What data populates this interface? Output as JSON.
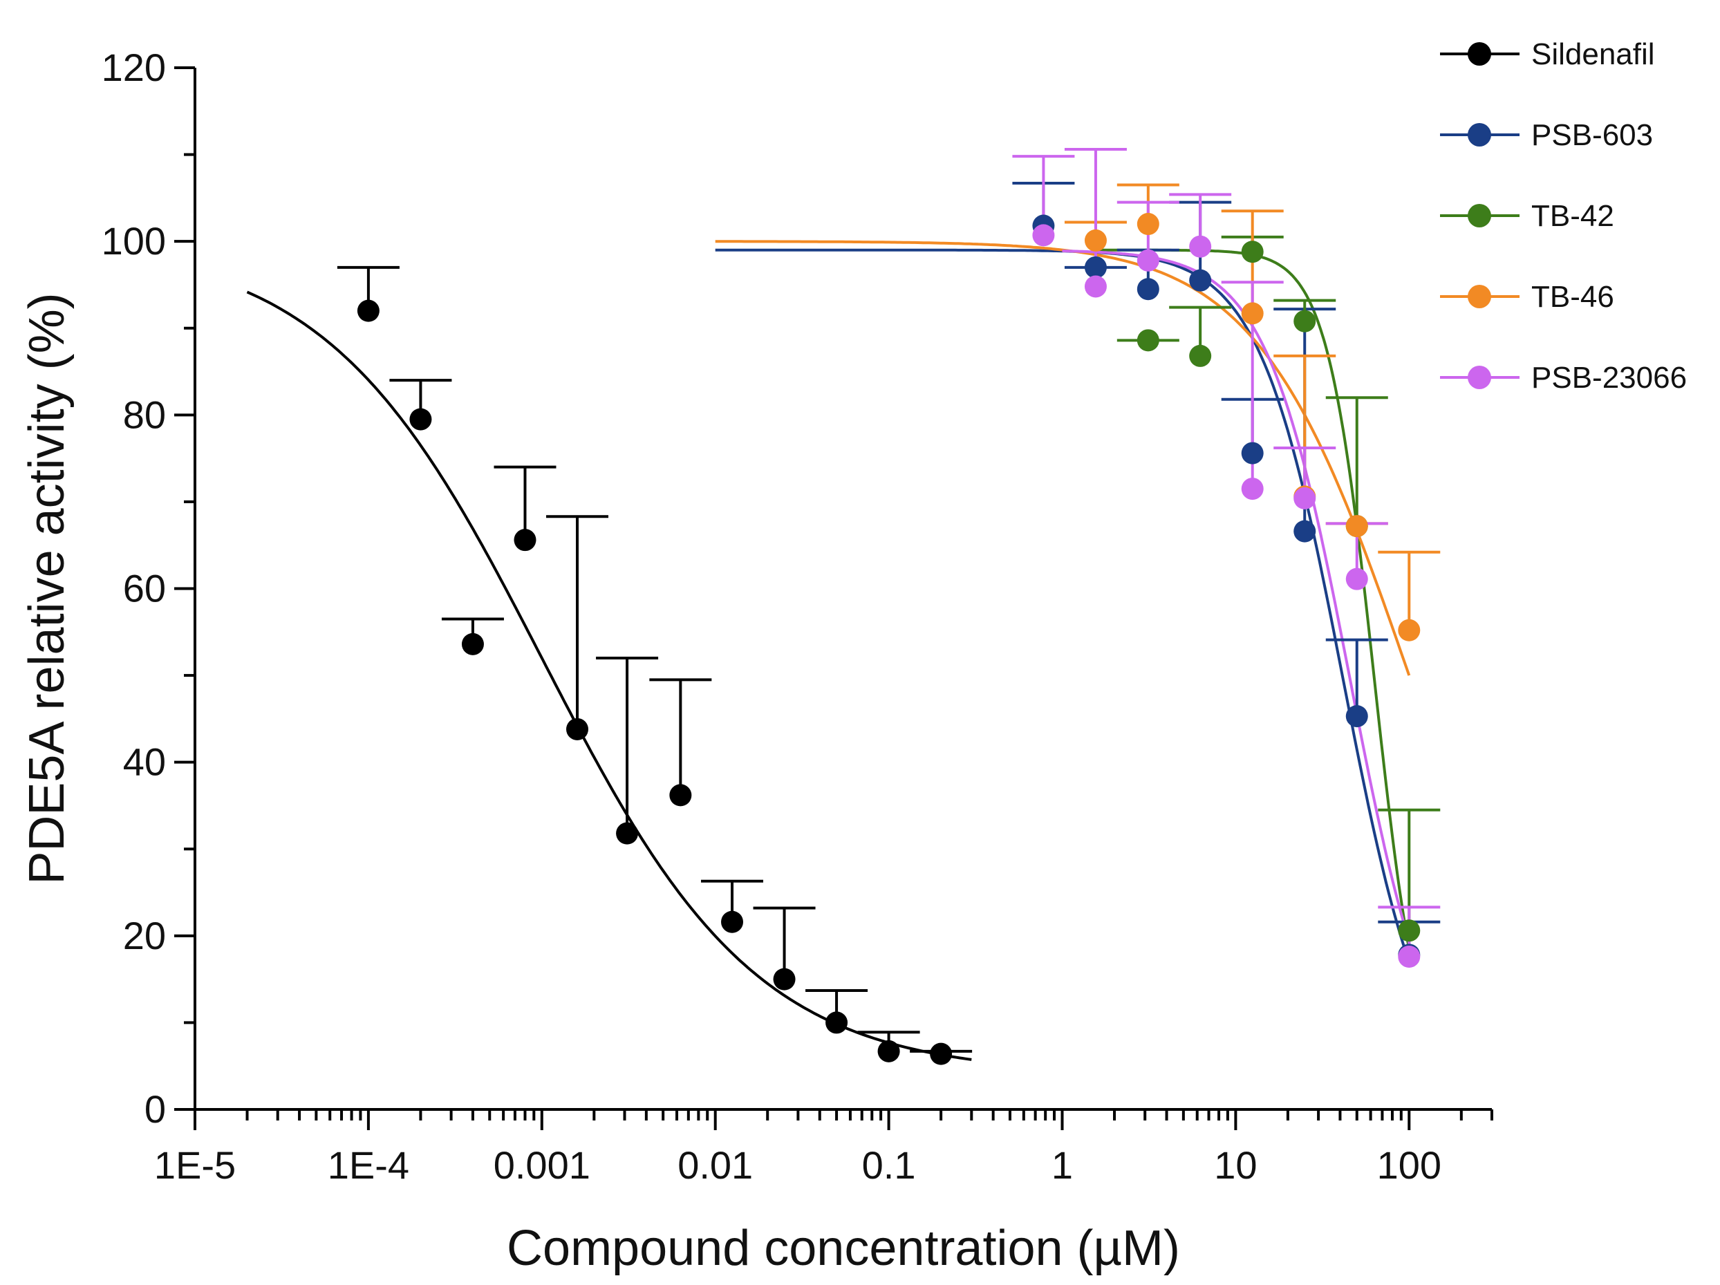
{
  "chart_data": {
    "type": "scatter",
    "xlabel": "Compound concentration (µM)",
    "ylabel": "PDE5A relative activity (%)",
    "xscale": "log",
    "xlim": [
      1e-05,
      300
    ],
    "ylim": [
      0,
      120
    ],
    "x_tick_labels": [
      "1E-5",
      "1E-4",
      "0.001",
      "0.01",
      "0.1",
      "1",
      "10",
      "100"
    ],
    "y_tick_labels": [
      "0",
      "20",
      "40",
      "60",
      "80",
      "100",
      "120"
    ],
    "legend_position": "top-right",
    "series": [
      {
        "name": "Sildenafil",
        "color": "#000000",
        "x": [
          0.0001,
          0.0002,
          0.0004,
          0.0008,
          0.0016,
          0.0031,
          0.0063,
          0.0125,
          0.025,
          0.05,
          0.1,
          0.2
        ],
        "y": [
          92,
          79.5,
          53.6,
          65.6,
          43.8,
          31.8,
          36.2,
          21.6,
          15,
          10,
          6.7,
          6.4
        ],
        "error_upper": [
          97,
          84,
          56.5,
          74,
          68.3,
          52,
          49.5,
          26.3,
          23.2,
          13.7,
          8.9,
          6.7
        ],
        "fit": {
          "top": 100,
          "bottom": 4,
          "logIC50": -3.0,
          "hill": 0.7,
          "xmin": 2e-05,
          "xmax": 0.3
        }
      },
      {
        "name": "PSB-603",
        "color": "#1a3e86",
        "x": [
          0.78,
          1.56,
          3.13,
          6.25,
          12.5,
          25,
          50,
          100
        ],
        "y": [
          101.8,
          97,
          94.5,
          95.5,
          75.6,
          66.6,
          45.3,
          17.8
        ],
        "error_upper": [
          106.7,
          97,
          99,
          104.5,
          81.8,
          92.2,
          54.1,
          21.6
        ],
        "fit": {
          "top": 99,
          "bottom": 0,
          "logIC50": 1.62,
          "hill": 1.8,
          "xmin": 0.01,
          "xmax": 100
        }
      },
      {
        "name": "TB-42",
        "color": "#3d7d1a",
        "x": [
          3.13,
          6.25,
          12.5,
          25,
          50,
          100
        ],
        "y": [
          88.6,
          86.8,
          98.8,
          90.8,
          67.2,
          20.6
        ],
        "error_upper": [
          88.6,
          92.4,
          100.5,
          93.2,
          82,
          34.5
        ],
        "fit": {
          "top": 99,
          "bottom": 0,
          "logIC50": 1.8,
          "hill": 3.2,
          "xmin": 1.5,
          "xmax": 100
        }
      },
      {
        "name": "TB-46",
        "color": "#f28a24",
        "x": [
          1.56,
          3.13,
          12.5,
          25,
          50,
          100
        ],
        "y": [
          100.1,
          102,
          91.7,
          70.6,
          67.2,
          55.2
        ],
        "error_upper": [
          102.2,
          106.5,
          103.5,
          86.8,
          67.5,
          64.2
        ],
        "fit": {
          "top": 100,
          "bottom": 0,
          "logIC50": 2.0,
          "hill": 1.0,
          "xmin": 0.01,
          "xmax": 100
        }
      },
      {
        "name": "PSB-23066",
        "color": "#cc66ee",
        "x": [
          0.78,
          1.56,
          3.13,
          6.25,
          12.5,
          25,
          50,
          100
        ],
        "y": [
          100.7,
          94.8,
          97.8,
          99.4,
          71.5,
          70.4,
          61.1,
          17.6
        ],
        "error_upper": [
          109.8,
          110.6,
          104.5,
          105.4,
          95.3,
          76.2,
          67.5,
          23.3
        ],
        "fit": {
          "top": 99,
          "bottom": 0,
          "logIC50": 1.66,
          "hill": 1.8,
          "xmin": 1,
          "xmax": 100
        }
      }
    ]
  }
}
